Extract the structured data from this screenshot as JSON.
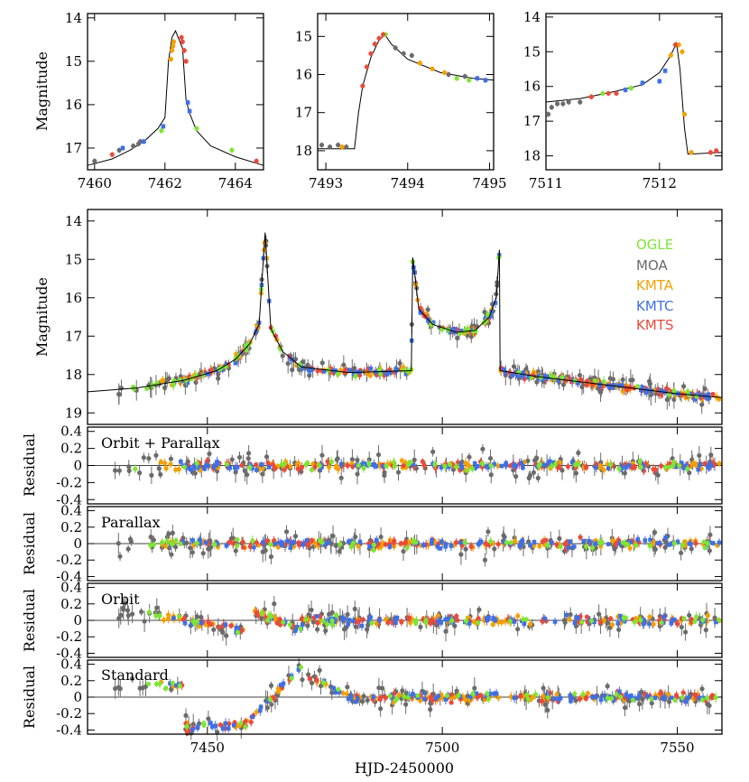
{
  "colors": {
    "OGLE": "#7fe533",
    "MOA": "#6b6b6b",
    "KMTA": "#f5a000",
    "KMTC": "#3f6fe6",
    "KMTS": "#eb4a3a",
    "model": "#000000"
  },
  "chart_data": [
    {
      "id": "zoom1",
      "type": "scatter",
      "ylabel": "Magnitude",
      "xlim": [
        7459.8,
        7464.8
      ],
      "ylim": [
        17.5,
        13.9
      ],
      "xticks": [
        7460,
        7462,
        7464
      ],
      "yticks": [
        14,
        15,
        16,
        17
      ],
      "model": {
        "x": [
          7459.8,
          7460.5,
          7461.0,
          7461.4,
          7461.8,
          7462.0,
          7462.1,
          7462.2,
          7462.3,
          7462.5,
          7462.6,
          7462.7,
          7462.9,
          7463.3,
          7464.0,
          7464.8
        ],
        "y": [
          17.4,
          17.25,
          17.05,
          16.85,
          16.55,
          16.3,
          15.0,
          14.45,
          14.3,
          14.7,
          15.9,
          16.2,
          16.6,
          16.95,
          17.2,
          17.4
        ]
      },
      "series": [
        {
          "name": "OGLE",
          "x": [
            7461.9,
            7462.9,
            7463.9
          ],
          "y": [
            16.6,
            16.55,
            17.05
          ]
        },
        {
          "name": "MOA",
          "x": [
            7460.0,
            7460.7,
            7461.1,
            7461.25,
            7461.3
          ],
          "y": [
            17.3,
            17.05,
            16.95,
            16.9,
            16.85
          ]
        },
        {
          "name": "KMTA",
          "x": [
            7462.17,
            7462.2,
            7462.23,
            7462.25
          ],
          "y": [
            14.95,
            14.75,
            14.65,
            14.55
          ]
        },
        {
          "name": "KMTC",
          "x": [
            7460.8,
            7461.4,
            7461.95,
            7462.65,
            7462.7
          ],
          "y": [
            17.0,
            16.85,
            16.5,
            15.95,
            16.15
          ]
        },
        {
          "name": "KMTS",
          "x": [
            7460.5,
            7462.47,
            7462.5,
            7462.55,
            7462.6,
            7464.6
          ],
          "y": [
            17.15,
            14.45,
            14.55,
            14.75,
            15.0,
            17.3
          ]
        }
      ]
    },
    {
      "id": "zoom2",
      "type": "scatter",
      "xlim": [
        7492.9,
        7495.05
      ],
      "ylim": [
        18.5,
        14.4
      ],
      "xticks": [
        7493,
        7494,
        7495
      ],
      "yticks": [
        15,
        16,
        17,
        18
      ],
      "model": {
        "x": [
          7492.9,
          7493.35,
          7493.4,
          7493.45,
          7493.55,
          7493.65,
          7493.72,
          7493.8,
          7494.0,
          7494.4,
          7494.8,
          7495.05
        ],
        "y": [
          17.95,
          17.95,
          17.0,
          16.3,
          15.55,
          15.1,
          14.95,
          15.2,
          15.6,
          15.95,
          16.1,
          16.15
        ]
      },
      "series": [
        {
          "name": "OGLE",
          "x": [
            7493.73,
            7494.6,
            7494.75
          ],
          "y": [
            14.95,
            16.1,
            16.15
          ]
        },
        {
          "name": "MOA",
          "x": [
            7492.95,
            7493.05,
            7493.15,
            7493.25,
            7493.85,
            7493.95,
            7494.05,
            7494.5,
            7494.7
          ],
          "y": [
            17.85,
            17.9,
            17.85,
            17.9,
            15.3,
            15.45,
            15.5,
            16.0,
            16.05
          ]
        },
        {
          "name": "KMTA",
          "x": [
            7493.2,
            7494.15,
            7494.3,
            7494.45
          ],
          "y": [
            17.9,
            15.7,
            15.85,
            15.95
          ]
        },
        {
          "name": "KMTC",
          "x": [
            7494.85,
            7494.95
          ],
          "y": [
            16.1,
            16.15
          ]
        },
        {
          "name": "KMTS",
          "x": [
            7493.45,
            7493.5,
            7493.55,
            7493.6,
            7493.65,
            7493.7
          ],
          "y": [
            16.3,
            15.8,
            15.45,
            15.2,
            15.05,
            14.95
          ]
        }
      ]
    },
    {
      "id": "zoom3",
      "type": "scatter",
      "xlim": [
        7511.0,
        7512.55
      ],
      "ylim": [
        18.4,
        13.9
      ],
      "xticks": [
        7511,
        7512
      ],
      "yticks": [
        14,
        15,
        16,
        17,
        18
      ],
      "model": {
        "x": [
          7511.0,
          7511.3,
          7511.6,
          7511.85,
          7512.0,
          7512.1,
          7512.15,
          7512.18,
          7512.22,
          7512.25,
          7512.55
        ],
        "y": [
          16.45,
          16.35,
          16.15,
          15.95,
          15.6,
          15.1,
          14.75,
          15.5,
          17.2,
          17.95,
          17.9
        ]
      },
      "series": [
        {
          "name": "OGLE",
          "x": [
            7511.5,
            7511.75
          ],
          "y": [
            16.2,
            16.05
          ]
        },
        {
          "name": "MOA",
          "x": [
            7511.02,
            7511.05,
            7511.1,
            7511.15,
            7511.2,
            7511.3
          ],
          "y": [
            16.8,
            16.6,
            16.5,
            16.5,
            16.45,
            16.45
          ]
        },
        {
          "name": "KMTA",
          "x": [
            7512.1,
            7512.17,
            7512.2,
            7512.22,
            7512.28
          ],
          "y": [
            15.1,
            14.8,
            15.0,
            16.8,
            17.9
          ]
        },
        {
          "name": "KMTC",
          "x": [
            7511.7,
            7511.85,
            7512.0,
            7512.05
          ],
          "y": [
            16.1,
            15.9,
            15.85,
            15.55
          ]
        },
        {
          "name": "KMTS",
          "x": [
            7511.4,
            7511.55,
            7511.62,
            7512.14,
            7512.45,
            7512.5
          ],
          "y": [
            16.3,
            16.2,
            16.2,
            14.8,
            17.9,
            17.85
          ]
        }
      ]
    },
    {
      "id": "main",
      "type": "scatter",
      "ylabel": "Magnitude",
      "xlim": [
        7424.5,
        7559.5
      ],
      "ylim": [
        19.3,
        13.7
      ],
      "yticks": [
        14,
        15,
        16,
        17,
        18,
        19
      ],
      "legend": [
        "OGLE",
        "MOA",
        "KMTA",
        "KMTC",
        "KMTS"
      ],
      "legend_position": "top-right",
      "model": {
        "x": [
          7424.5,
          7435,
          7445,
          7452,
          7456,
          7459,
          7461,
          7462.3,
          7463.5,
          7466,
          7470,
          7480,
          7493.4,
          7493.7,
          7495,
          7498,
          7503,
          7507,
          7510,
          7511.5,
          7512.15,
          7512.3,
          7520,
          7530,
          7540,
          7550,
          7559.5
        ],
        "y": [
          18.45,
          18.35,
          18.15,
          17.9,
          17.6,
          17.2,
          16.7,
          14.3,
          16.8,
          17.4,
          17.8,
          17.95,
          17.9,
          14.95,
          16.3,
          16.7,
          16.9,
          16.85,
          16.5,
          16.0,
          14.75,
          17.9,
          18.05,
          18.2,
          18.35,
          18.5,
          18.6
        ]
      },
      "series_ranges": {
        "OGLE": [
          7434,
          7559
        ],
        "MOA": [
          7430,
          7559
        ],
        "KMTA": [
          7440,
          7559
        ],
        "KMTC": [
          7442,
          7559
        ],
        "KMTS": [
          7444,
          7559
        ]
      }
    }
  ],
  "residual_panels": [
    {
      "label": "Orbit + Parallax",
      "ylabel": "Residual",
      "kind": "good"
    },
    {
      "label": "Parallax",
      "ylabel": "Residual",
      "kind": "good"
    },
    {
      "label": "Orbit",
      "ylabel": "Residual",
      "kind": "orbit"
    },
    {
      "label": "Standard",
      "ylabel": "Residual",
      "kind": "standard"
    }
  ],
  "residual_axis": {
    "ylim": [
      -0.45,
      0.45
    ],
    "yticks": [
      "0.4",
      "0.2",
      "0",
      "-0.2",
      "-0.4"
    ],
    "xticks": [
      7450,
      7500,
      7550
    ],
    "xlabel": "HJD-2450000"
  }
}
